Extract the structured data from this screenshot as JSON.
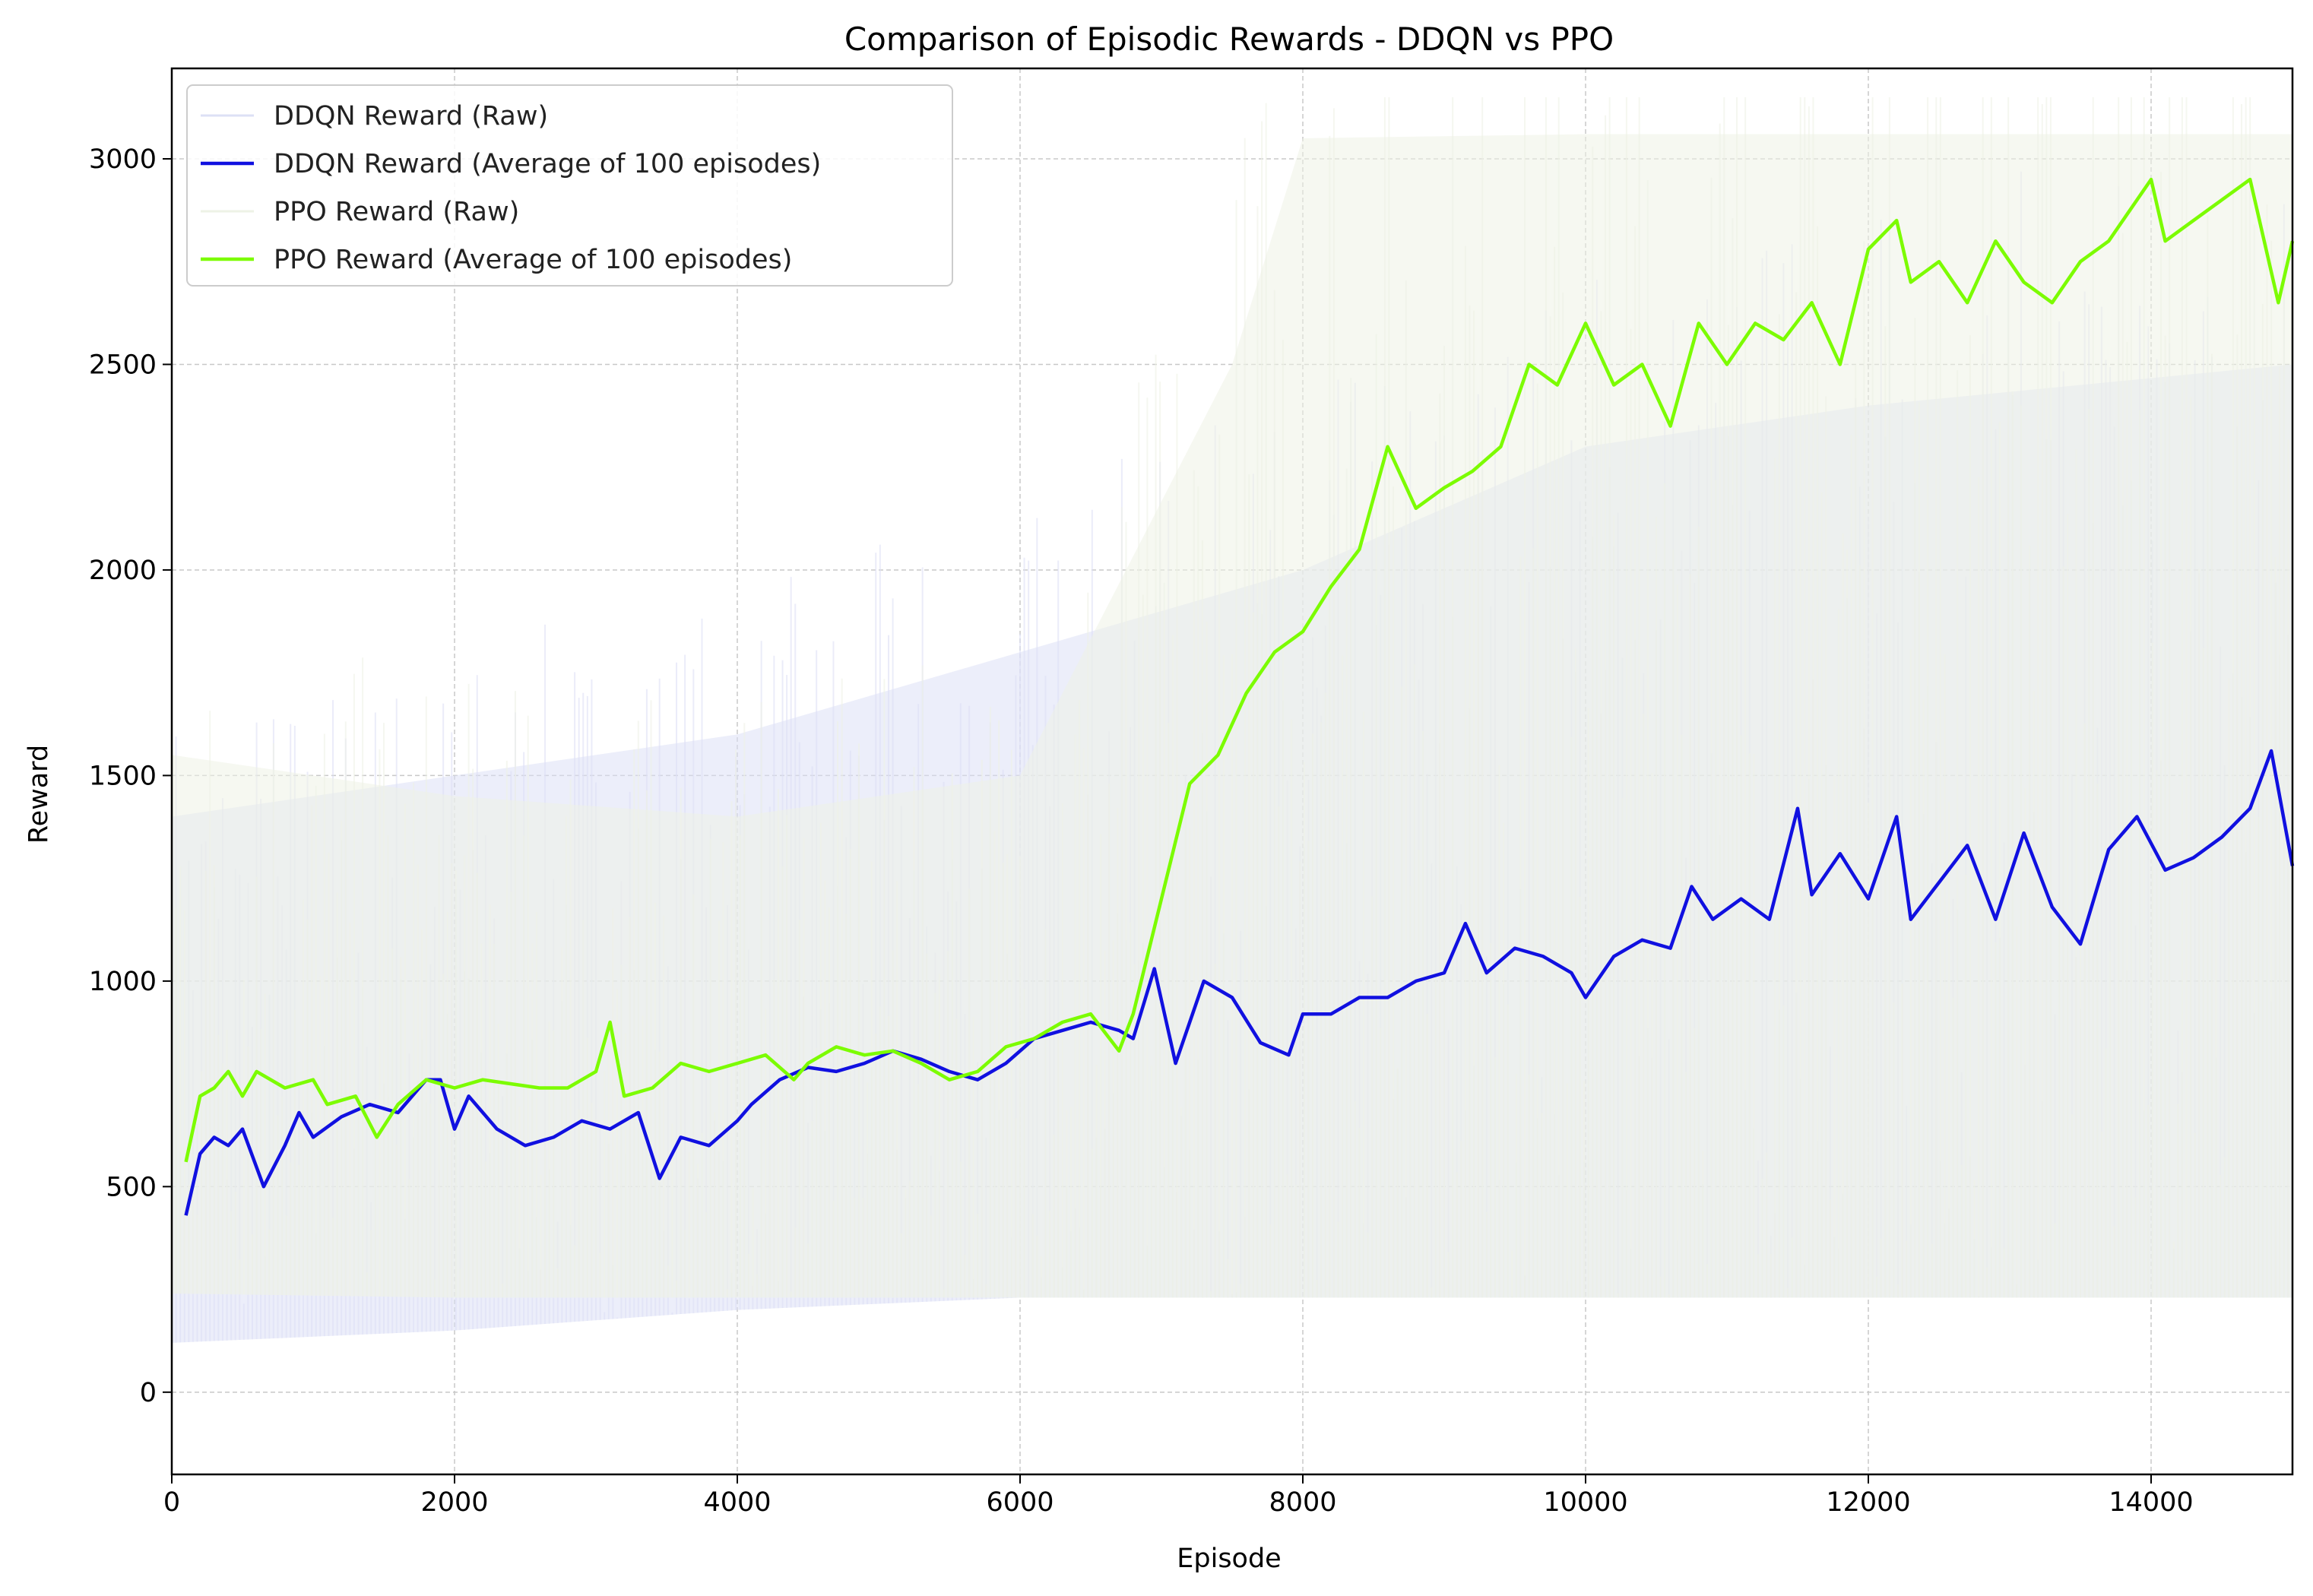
{
  "chart_data": {
    "type": "line",
    "title": "Comparison of Episodic Rewards - DDQN vs PPO",
    "xlabel": "Episode",
    "ylabel": "Reward",
    "xlim": [
      0,
      15000
    ],
    "ylim": [
      -200,
      3220
    ],
    "xticks": [
      0,
      2000,
      4000,
      6000,
      8000,
      10000,
      12000,
      14000
    ],
    "yticks": [
      0,
      500,
      1000,
      1500,
      2000,
      2500,
      3000
    ],
    "grid": true,
    "legend_position": "top-left",
    "series": [
      {
        "name": "DDQN Reward (Raw)",
        "kind": "raw-band",
        "color": "#dde0f5",
        "band": [
          [
            0,
            120,
            1400
          ],
          [
            2000,
            150,
            1500
          ],
          [
            4000,
            200,
            1600
          ],
          [
            6000,
            230,
            1800
          ],
          [
            8000,
            230,
            2000
          ],
          [
            10000,
            230,
            2300
          ],
          [
            12000,
            230,
            2400
          ],
          [
            15000,
            230,
            2500
          ]
        ]
      },
      {
        "name": "DDQN Reward (Average of 100 episodes)",
        "kind": "line",
        "color": "#1010e0",
        "x": [
          100,
          200,
          300,
          400,
          500,
          650,
          800,
          900,
          1000,
          1200,
          1400,
          1600,
          1800,
          1900,
          2000,
          2100,
          2300,
          2500,
          2700,
          2900,
          3100,
          3300,
          3450,
          3600,
          3800,
          4000,
          4100,
          4300,
          4500,
          4700,
          4900,
          5100,
          5300,
          5500,
          5700,
          5900,
          6100,
          6300,
          6500,
          6700,
          6800,
          6950,
          7100,
          7300,
          7500,
          7700,
          7900,
          8000,
          8200,
          8400,
          8600,
          8800,
          9000,
          9150,
          9300,
          9500,
          9700,
          9900,
          10000,
          10200,
          10400,
          10600,
          10750,
          10900,
          11100,
          11300,
          11500,
          11600,
          11800,
          12000,
          12200,
          12300,
          12500,
          12700,
          12900,
          13100,
          13300,
          13500,
          13700,
          13900,
          14100,
          14300,
          14500,
          14700,
          14850,
          15000
        ],
        "values": [
          430,
          580,
          620,
          600,
          640,
          500,
          600,
          680,
          620,
          670,
          700,
          680,
          760,
          760,
          640,
          720,
          640,
          600,
          620,
          660,
          640,
          680,
          520,
          620,
          600,
          660,
          700,
          760,
          790,
          780,
          800,
          830,
          810,
          780,
          760,
          800,
          860,
          880,
          900,
          880,
          860,
          1030,
          800,
          1000,
          960,
          850,
          820,
          920,
          920,
          960,
          960,
          1000,
          1020,
          1140,
          1020,
          1080,
          1060,
          1020,
          960,
          1060,
          1100,
          1080,
          1230,
          1150,
          1200,
          1150,
          1420,
          1210,
          1310,
          1200,
          1400,
          1150,
          1240,
          1330,
          1150,
          1360,
          1180,
          1090,
          1320,
          1400,
          1270,
          1300,
          1350,
          1420,
          1560,
          1280
        ]
      },
      {
        "name": "PPO Reward (Raw)",
        "kind": "raw-band",
        "color": "#eef2e6",
        "band": [
          [
            0,
            240,
            1550
          ],
          [
            2000,
            230,
            1450
          ],
          [
            4000,
            230,
            1400
          ],
          [
            6000,
            230,
            1500
          ],
          [
            7500,
            230,
            2500
          ],
          [
            8000,
            230,
            3050
          ],
          [
            10000,
            230,
            3060
          ],
          [
            12000,
            230,
            3060
          ],
          [
            15000,
            230,
            3060
          ]
        ]
      },
      {
        "name": "PPO Reward (Average of 100 episodes)",
        "kind": "line",
        "color": "#7cfc00",
        "x": [
          100,
          200,
          300,
          400,
          500,
          600,
          800,
          1000,
          1100,
          1300,
          1450,
          1600,
          1800,
          2000,
          2200,
          2400,
          2600,
          2800,
          3000,
          3100,
          3200,
          3400,
          3600,
          3800,
          4000,
          4200,
          4400,
          4500,
          4700,
          4900,
          5100,
          5300,
          5500,
          5700,
          5900,
          6100,
          6300,
          6500,
          6700,
          6800,
          7000,
          7200,
          7400,
          7600,
          7800,
          8000,
          8200,
          8400,
          8600,
          8800,
          9000,
          9200,
          9400,
          9600,
          9800,
          10000,
          10200,
          10400,
          10600,
          10800,
          11000,
          11200,
          11400,
          11600,
          11800,
          12000,
          12200,
          12300,
          12500,
          12700,
          12900,
          13100,
          13300,
          13500,
          13700,
          13900,
          14000,
          14100,
          14300,
          14500,
          14700,
          14900,
          15000
        ],
        "values": [
          560,
          720,
          740,
          780,
          720,
          780,
          740,
          760,
          700,
          720,
          620,
          700,
          760,
          740,
          760,
          750,
          740,
          740,
          780,
          900,
          720,
          740,
          800,
          780,
          800,
          820,
          760,
          800,
          840,
          820,
          830,
          800,
          760,
          780,
          840,
          860,
          900,
          920,
          830,
          920,
          1200,
          1480,
          1550,
          1700,
          1800,
          1850,
          1960,
          2050,
          2300,
          2150,
          2200,
          2240,
          2300,
          2500,
          2450,
          2600,
          2450,
          2500,
          2350,
          2600,
          2500,
          2600,
          2560,
          2650,
          2500,
          2780,
          2850,
          2700,
          2750,
          2650,
          2800,
          2700,
          2650,
          2750,
          2800,
          2900,
          2950,
          2800,
          2850,
          2900,
          2950,
          2650,
          2800
        ]
      }
    ]
  }
}
